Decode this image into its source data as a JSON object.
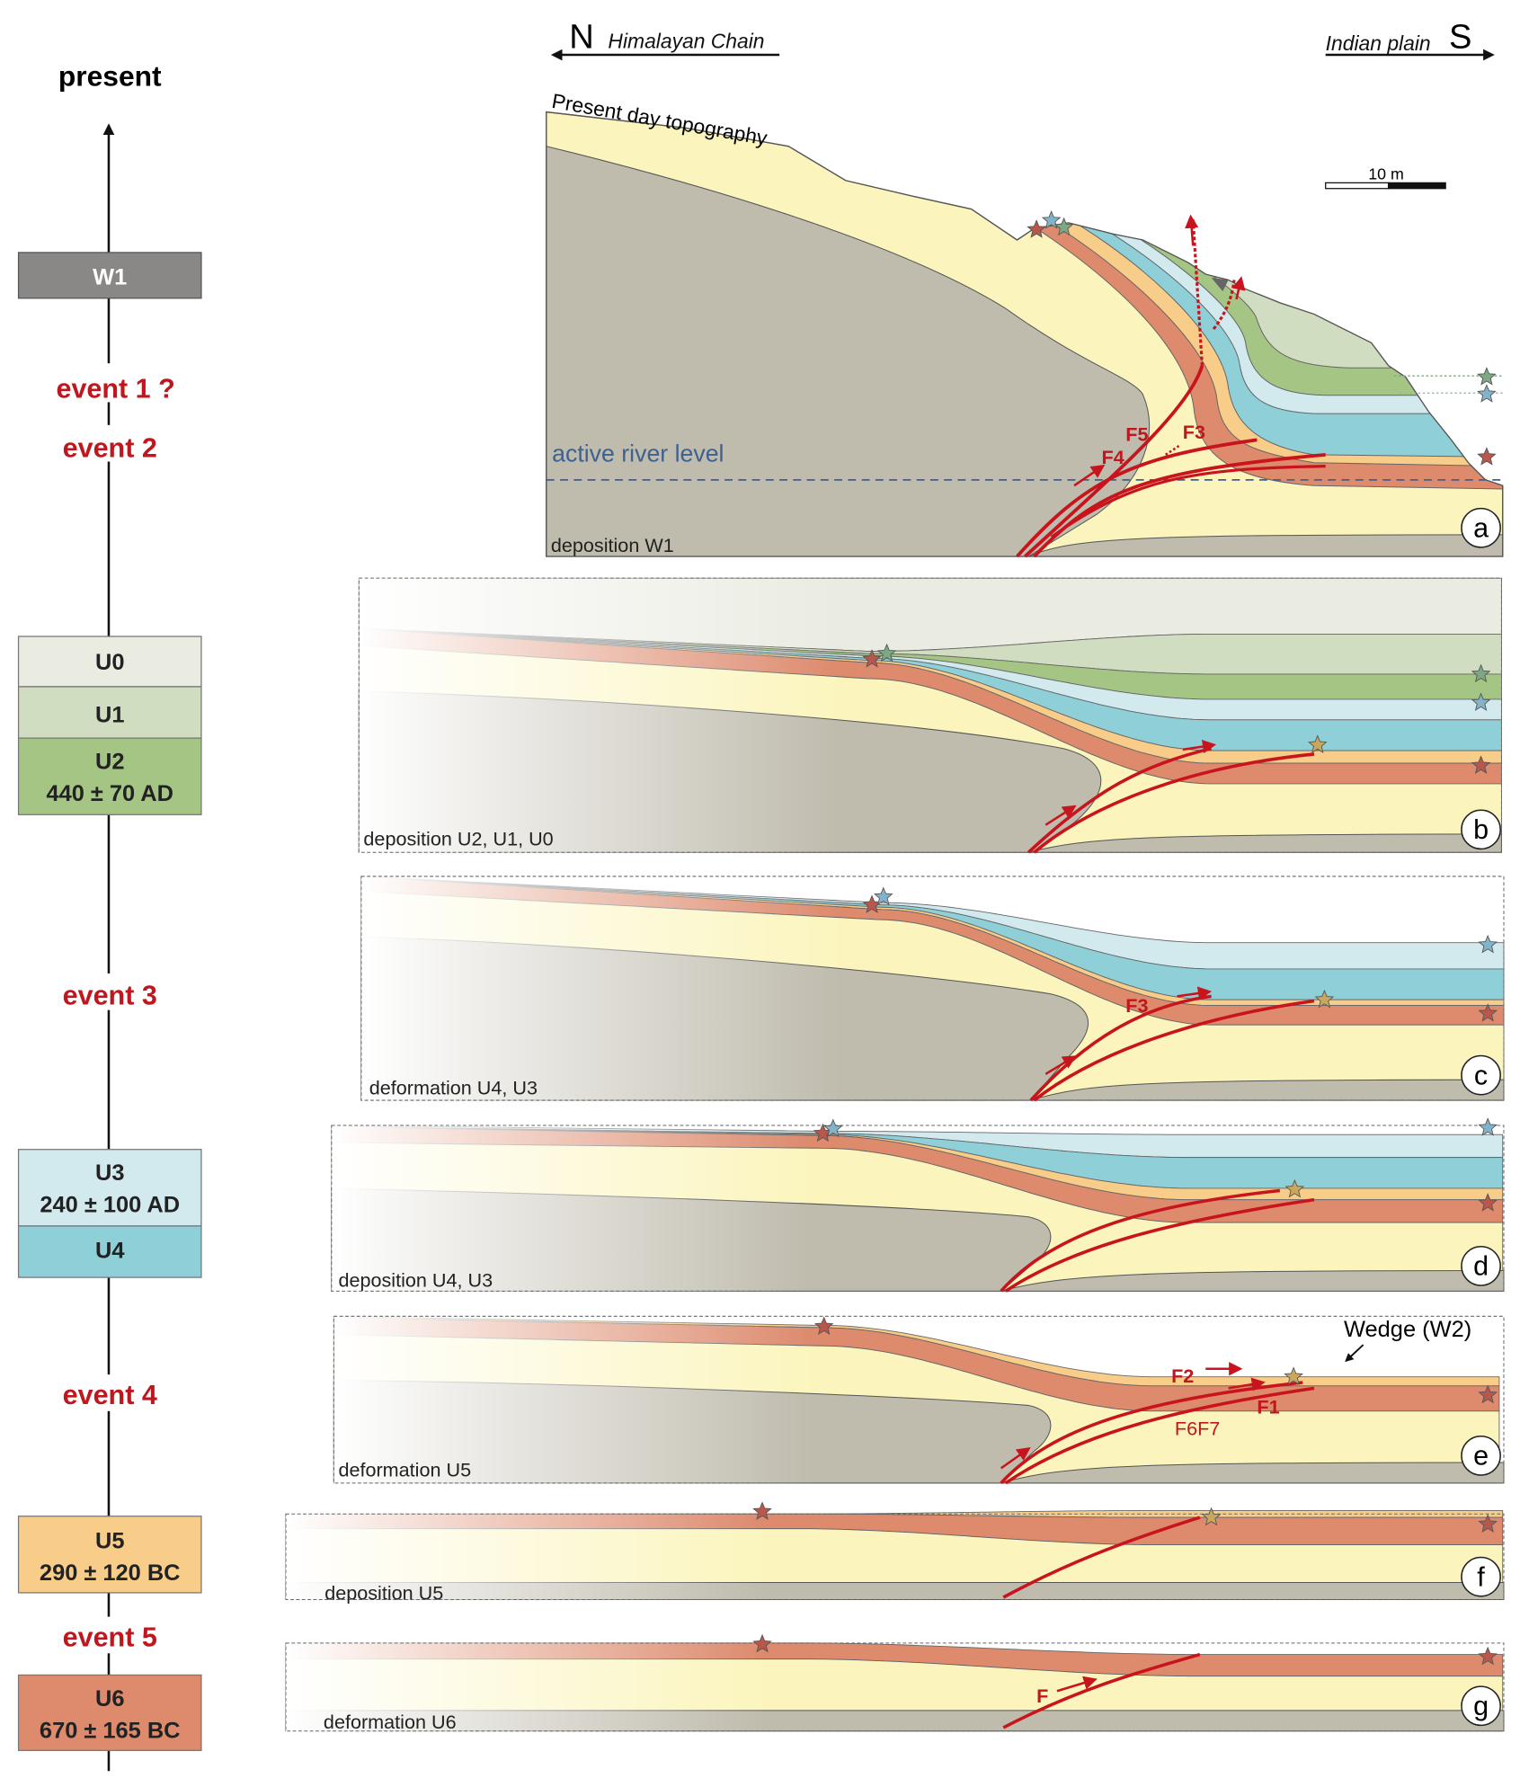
{
  "header": {
    "north_letter": "N",
    "north_label": "Himalayan Chain",
    "south_label": "Indian plain",
    "south_letter": "S"
  },
  "timeline": {
    "present": "present",
    "boxes": {
      "w1": "W1",
      "u0": "U0",
      "u1": "U1",
      "u2": "U2",
      "u2_age": "440 ± 70 AD",
      "u3": "U3",
      "u3_age": "240 ± 100 AD",
      "u4": "U4",
      "u5": "U5",
      "u5_age": "290 ± 120 BC",
      "u6": "U6",
      "u6_age": "670 ± 165 BC"
    },
    "events": [
      "event 1 ?",
      "event 2",
      "event 3",
      "event 4",
      "event 5"
    ]
  },
  "panels": {
    "a": {
      "letter": "a",
      "caption": "deposition W1",
      "topography": "Present day topography",
      "river": "active river level",
      "scale": "10 m",
      "faults": [
        "F5",
        "F3",
        "F4"
      ]
    },
    "b": {
      "letter": "b",
      "caption": "deposition U2, U1, U0"
    },
    "c": {
      "letter": "c",
      "caption": "deformation U4, U3",
      "faults": [
        "F3"
      ]
    },
    "d": {
      "letter": "d",
      "caption": "deposition U4, U3"
    },
    "e": {
      "letter": "e",
      "caption": "deformation U5",
      "wedge": "Wedge (W2)",
      "faults": [
        "F2",
        "F1",
        "F6F7"
      ]
    },
    "f": {
      "letter": "f",
      "caption": "deposition U5"
    },
    "g": {
      "letter": "g",
      "caption": "deformation U6",
      "faults": [
        "F"
      ]
    }
  },
  "colors": {
    "event_red": "#c0161d",
    "fault_red": "#c8141c",
    "W1": "#8a8887",
    "U0": "#eaece2",
    "U1": "#d0ddc0",
    "U2": "#a5c585",
    "U3": "#d2e9ee",
    "U4": "#8ecfd8",
    "U5": "#f8cd89",
    "U6": "#dd8a6d",
    "gravel": "#fbf5bd",
    "basement": "#bfbbad",
    "river": "#3f6190",
    "star_red": "#b9574c",
    "star_blue": "#83b3c8",
    "star_green": "#7da884",
    "star_orange": "#c9a75c"
  }
}
